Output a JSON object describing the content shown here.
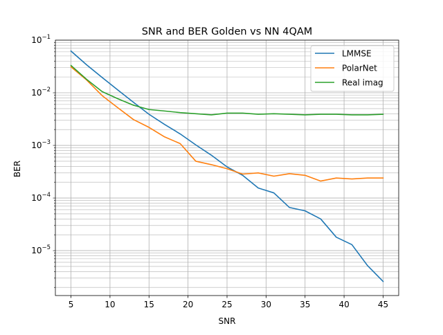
{
  "chart_data": {
    "type": "line",
    "title": "SNR and BER Golden vs NN 4QAM",
    "xlabel": "SNR",
    "ylabel": "BER",
    "yscale": "log",
    "xlim": [
      3,
      47
    ],
    "ylim": [
      1.4e-06,
      0.1
    ],
    "grid": true,
    "legend_position": "top-right",
    "x_ticks": [
      5,
      10,
      15,
      20,
      25,
      30,
      35,
      40,
      45
    ],
    "x_tick_labels": [
      "5",
      "10",
      "15",
      "20",
      "25",
      "30",
      "35",
      "40",
      "45"
    ],
    "y_ticks": [
      0.1,
      0.01,
      0.001,
      0.0001,
      1e-05
    ],
    "y_tick_labels": [
      {
        "base": "10",
        "exp": "−1"
      },
      {
        "base": "10",
        "exp": "−2"
      },
      {
        "base": "10",
        "exp": "−3"
      },
      {
        "base": "10",
        "exp": "−4"
      },
      {
        "base": "10",
        "exp": "−5"
      }
    ],
    "x": [
      5,
      7,
      9,
      11,
      13,
      15,
      17,
      19,
      21,
      23,
      25,
      27,
      29,
      31,
      33,
      35,
      37,
      39,
      41,
      43,
      45
    ],
    "series": [
      {
        "name": "LMMSE",
        "color": "#1f77b4",
        "values": [
          0.062,
          0.034,
          0.0195,
          0.0113,
          0.0066,
          0.0039,
          0.0025,
          0.00165,
          0.00102,
          0.00065,
          0.00039,
          0.00027,
          0.000155,
          0.000125,
          6.6e-05,
          5.7e-05,
          4e-05,
          1.8e-05,
          1.3e-05,
          5.2e-06,
          2.6e-06
        ]
      },
      {
        "name": "PolarNet",
        "color": "#ff7f0e",
        "values": [
          0.031,
          0.0175,
          0.0088,
          0.0052,
          0.0031,
          0.0022,
          0.00145,
          0.00108,
          0.0005,
          0.00043,
          0.00036,
          0.000285,
          0.0003,
          0.00026,
          0.00029,
          0.00027,
          0.00021,
          0.00024,
          0.00023,
          0.00024,
          0.00024
        ]
      },
      {
        "name": "Real imag",
        "color": "#2ca02c",
        "values": [
          0.033,
          0.018,
          0.0105,
          0.0077,
          0.0058,
          0.0048,
          0.0045,
          0.0042,
          0.004,
          0.0038,
          0.0041,
          0.0041,
          0.0039,
          0.004,
          0.0039,
          0.0038,
          0.0039,
          0.0039,
          0.0038,
          0.0038,
          0.0039
        ]
      }
    ]
  }
}
